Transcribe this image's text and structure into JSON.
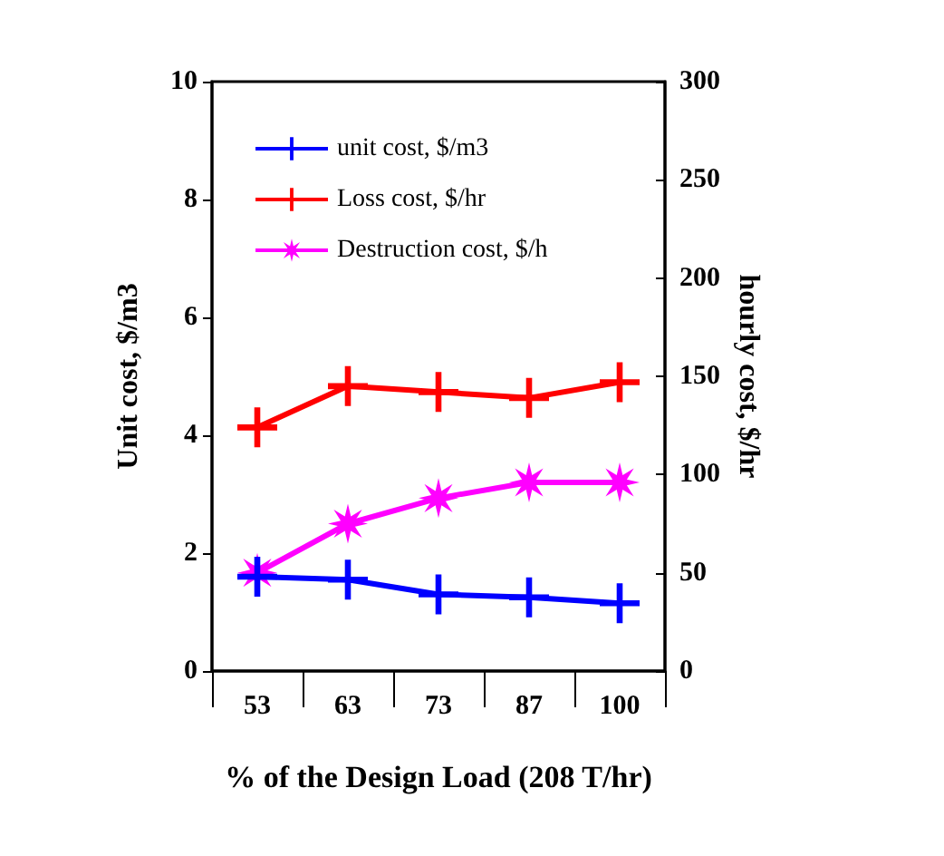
{
  "chart_data": {
    "type": "line",
    "xlabel": "% of the Design Load (208 T/hr)",
    "ylabel": "Unit cost, $/m3",
    "y2label": "hourly cost, $/hr",
    "categories": [
      "53",
      "63",
      "73",
      "87",
      "100"
    ],
    "series": [
      {
        "name": "unit cost, $/m3",
        "color": "#0000ff",
        "values": [
          1.6,
          1.55,
          1.3,
          1.25,
          1.15
        ],
        "marker": "cross"
      },
      {
        "name": "Loss cost, $/hr",
        "color": "#ff0000",
        "values": [
          124,
          145,
          142,
          139,
          147
        ],
        "axis": "y2",
        "marker": "cross"
      },
      {
        "name": "Destruction cost, $/h",
        "color": "#ff00ff",
        "values": [
          50,
          75,
          88,
          96,
          96
        ],
        "axis": "y2",
        "marker": "star"
      }
    ],
    "ylim": [
      0,
      10
    ],
    "yticks": [
      0,
      2,
      4,
      6,
      8,
      10
    ],
    "y2lim": [
      0,
      300
    ],
    "y2ticks": [
      0,
      50,
      100,
      150,
      200,
      250,
      300
    ],
    "legend": "top left",
    "grid": false,
    "line_style": "solid"
  }
}
